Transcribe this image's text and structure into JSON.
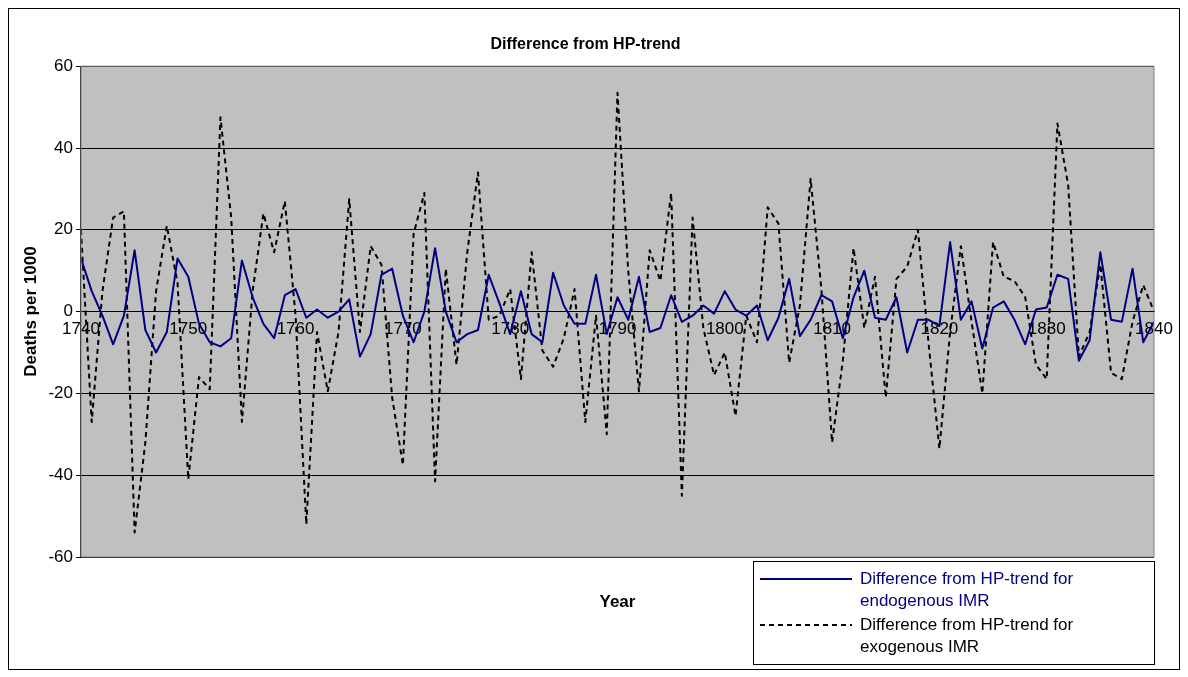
{
  "chart_data": {
    "type": "line",
    "title": "Difference from HP-trend",
    "xlabel": "Year",
    "ylabel": "Deaths per 1000",
    "x": [
      1740,
      1741,
      1742,
      1743,
      1744,
      1745,
      1746,
      1747,
      1748,
      1749,
      1750,
      1751,
      1752,
      1753,
      1754,
      1755,
      1756,
      1757,
      1758,
      1759,
      1760,
      1761,
      1762,
      1763,
      1764,
      1765,
      1766,
      1767,
      1768,
      1769,
      1770,
      1771,
      1772,
      1773,
      1774,
      1775,
      1776,
      1777,
      1778,
      1779,
      1780,
      1781,
      1782,
      1783,
      1784,
      1785,
      1786,
      1787,
      1788,
      1789,
      1790,
      1791,
      1792,
      1793,
      1794,
      1795,
      1796,
      1797,
      1798,
      1799,
      1800,
      1801,
      1802,
      1803,
      1804,
      1805,
      1806,
      1807,
      1808,
      1809,
      1810,
      1811,
      1812,
      1813,
      1814,
      1815,
      1816,
      1817,
      1818,
      1819,
      1820,
      1821,
      1822,
      1823,
      1824,
      1825,
      1826,
      1827,
      1828,
      1829,
      1830,
      1831,
      1832,
      1833,
      1834,
      1835,
      1836,
      1837,
      1838,
      1839,
      1840
    ],
    "series": [
      {
        "name": "Difference from HP-trend for endogenous IMR",
        "color": "#000080",
        "line_style": "solid",
        "values": [
          13,
          5,
          -1,
          -8,
          -1,
          15,
          -4.5,
          -10,
          -5,
          13,
          8.5,
          -3,
          -7.5,
          -8.5,
          -6.5,
          12.5,
          3.5,
          -3,
          -6.5,
          4,
          5.5,
          -1.5,
          0.5,
          -1.5,
          0,
          3,
          -11,
          -5.5,
          9,
          10.5,
          -1,
          -7.5,
          0,
          15.5,
          0,
          -7.5,
          -5.5,
          -4.5,
          9,
          2,
          -5.5,
          5,
          -5.5,
          -7.5,
          9.5,
          1.5,
          -3,
          -3,
          9,
          -5.5,
          3.5,
          -2,
          8.5,
          -5,
          -4,
          4,
          -2.5,
          -1,
          1.5,
          -0.5,
          5,
          0.5,
          -1,
          1.5,
          -7,
          -1.5,
          8,
          -6,
          -2,
          4,
          2.5,
          -6.5,
          3.5,
          10,
          -1.5,
          -2,
          3.5,
          -10,
          -2,
          -2,
          -3.5,
          17,
          -2,
          2.5,
          -9,
          1,
          2.5,
          -2,
          -8,
          0.5,
          1,
          9,
          8,
          -12,
          -7,
          14.5,
          -2,
          -2.5,
          10.5,
          -7.5,
          -2.5
        ]
      },
      {
        "name": "Difference from HP-trend for exogenous IMR",
        "color": "#000000",
        "line_style": "dashed",
        "values": [
          20,
          -27,
          5,
          23,
          24.5,
          -54,
          -32,
          5,
          21,
          7,
          -41,
          -16,
          -19,
          47.5,
          23,
          -27,
          5,
          24,
          14.5,
          27,
          -1,
          -52,
          -5,
          -19.5,
          -5,
          27.5,
          -5,
          16,
          11.5,
          -21,
          -37.5,
          19,
          29,
          -41.5,
          10.5,
          -13,
          14.5,
          34,
          -2,
          -1,
          5.5,
          -16.5,
          14.5,
          -9.5,
          -13.5,
          -6.5,
          5.5,
          -27,
          -1,
          -30,
          53.5,
          10,
          -19.5,
          15,
          7.5,
          29,
          -45,
          23,
          -4,
          -15.5,
          -10,
          -25.5,
          -1,
          -7.5,
          25.5,
          21.5,
          -12.5,
          1.5,
          32.5,
          5.5,
          -32,
          -12,
          15.5,
          -4,
          8.5,
          -21,
          8,
          11,
          20,
          -8,
          -33.5,
          -5,
          16,
          -2.5,
          -20,
          17,
          8.5,
          7.5,
          3.5,
          -13,
          -16.5,
          46,
          31,
          -11,
          -5,
          11.5,
          -15,
          -16.5,
          -2.5,
          6.5,
          0
        ]
      }
    ],
    "xlim": [
      1740,
      1840
    ],
    "xticks": [
      1740,
      1750,
      1760,
      1770,
      1780,
      1790,
      1800,
      1810,
      1820,
      1830,
      1840
    ],
    "ylim": [
      -60,
      60
    ],
    "yticks": [
      -60,
      -40,
      -20,
      0,
      20,
      40,
      60
    ],
    "grid": "y",
    "legend": "bottom right",
    "marker": "none"
  }
}
